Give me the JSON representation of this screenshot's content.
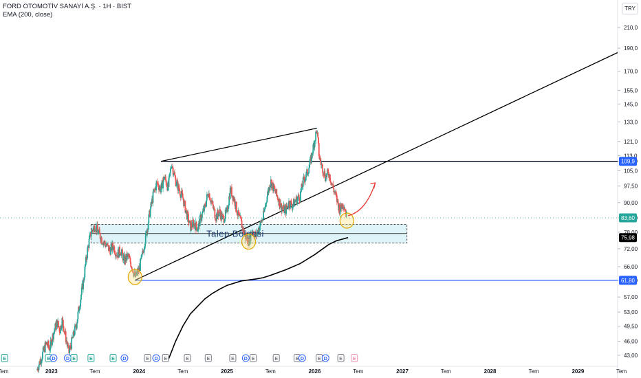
{
  "header": {
    "symbol_line": "FORD OTOMOTİV SANAYİ A.Ş. · 1H · BIST",
    "indicator_line": "EMA (200, close)",
    "currency": "TRY"
  },
  "chart_data": {
    "type": "candlestick",
    "title": "FORD OTOMOTİV SANAYİ A.Ş. · 1H · BIST",
    "indicator": "EMA (200, close)",
    "y_scale": "log",
    "ylim": [
      42,
      220
    ],
    "xlim": [
      "2022-06-01",
      "2029-06-15"
    ],
    "y_ticks": [
      43.0,
      46.0,
      49.5,
      53.0,
      57.0,
      61.8,
      66.0,
      72.0,
      78.0,
      83.6,
      90.0,
      97.5,
      105.0,
      109.9,
      113.0,
      121.0,
      133.0,
      145.0,
      155.0,
      170.0,
      190.0,
      210.0
    ],
    "y_tick_labels": [
      "43,00",
      "46,00",
      "49,50",
      "53,00",
      "57,00",
      "61,80",
      "66,00",
      "72,00",
      "78,00",
      "83,60",
      "90,00",
      "97,50",
      "105,0",
      "109,9",
      "113,0",
      "121,0",
      "133,0",
      "145,0",
      "155,0",
      "170,0",
      "190,0",
      "210,0"
    ],
    "x_ticks": [
      {
        "date": "2022-06-15",
        "label": "Tem"
      },
      {
        "date": "2023-01-01",
        "label": "2023"
      },
      {
        "date": "2023-07-01",
        "label": "Tem"
      },
      {
        "date": "2024-01-01",
        "label": "2024"
      },
      {
        "date": "2024-07-01",
        "label": "Tem"
      },
      {
        "date": "2025-01-01",
        "label": "2025"
      },
      {
        "date": "2025-07-01",
        "label": "Tem"
      },
      {
        "date": "2026-01-01",
        "label": "2026"
      },
      {
        "date": "2026-07-01",
        "label": "Tem"
      },
      {
        "date": "2027-01-01",
        "label": "2027"
      },
      {
        "date": "2027-07-01",
        "label": "Tem"
      },
      {
        "date": "2028-01-01",
        "label": "2028"
      },
      {
        "date": "2028-07-01",
        "label": "Tem"
      },
      {
        "date": "2029-01-01",
        "label": "2029"
      },
      {
        "date": "2029-07-01",
        "label": "Tem"
      }
    ],
    "price_path": [
      [
        "2022-11-01",
        40.0
      ],
      [
        "2022-11-20",
        42.5
      ],
      [
        "2022-12-10",
        45.5
      ],
      [
        "2022-12-25",
        44.5
      ],
      [
        "2023-01-10",
        48.0
      ],
      [
        "2023-01-25",
        50.5
      ],
      [
        "2023-02-05",
        48.5
      ],
      [
        "2023-02-15",
        51.0
      ],
      [
        "2023-03-01",
        47.0
      ],
      [
        "2023-03-15",
        43.5
      ],
      [
        "2023-04-01",
        47.0
      ],
      [
        "2023-04-15",
        50.0
      ],
      [
        "2023-05-01",
        56.0
      ],
      [
        "2023-05-15",
        62.0
      ],
      [
        "2023-06-01",
        72.0
      ],
      [
        "2023-06-15",
        78.0
      ],
      [
        "2023-07-01",
        80.5
      ],
      [
        "2023-07-15",
        78.0
      ],
      [
        "2023-08-01",
        75.0
      ],
      [
        "2023-08-15",
        73.5
      ],
      [
        "2023-09-01",
        71.5
      ],
      [
        "2023-09-15",
        73.0
      ],
      [
        "2023-10-01",
        70.0
      ],
      [
        "2023-10-15",
        71.5
      ],
      [
        "2023-11-01",
        68.0
      ],
      [
        "2023-11-15",
        69.5
      ],
      [
        "2023-12-01",
        66.5
      ],
      [
        "2023-12-15",
        62.8
      ],
      [
        "2024-01-01",
        65.0
      ],
      [
        "2024-01-15",
        70.0
      ],
      [
        "2024-02-01",
        78.0
      ],
      [
        "2024-02-15",
        86.0
      ],
      [
        "2024-03-01",
        94.0
      ],
      [
        "2024-03-15",
        99.0
      ],
      [
        "2024-04-01",
        96.0
      ],
      [
        "2024-04-15",
        102.0
      ],
      [
        "2024-05-01",
        96.5
      ],
      [
        "2024-05-15",
        109.0
      ],
      [
        "2024-06-01",
        100.0
      ],
      [
        "2024-06-15",
        96.0
      ],
      [
        "2024-07-01",
        92.0
      ],
      [
        "2024-07-15",
        86.0
      ],
      [
        "2024-08-01",
        80.0
      ],
      [
        "2024-08-15",
        81.5
      ],
      [
        "2024-09-01",
        79.5
      ],
      [
        "2024-09-15",
        84.0
      ],
      [
        "2024-10-01",
        88.0
      ],
      [
        "2024-10-15",
        95.0
      ],
      [
        "2024-11-01",
        89.0
      ],
      [
        "2024-11-15",
        84.0
      ],
      [
        "2024-12-01",
        86.0
      ],
      [
        "2024-12-15",
        83.0
      ],
      [
        "2025-01-01",
        86.0
      ],
      [
        "2025-01-15",
        96.0
      ],
      [
        "2025-02-01",
        91.0
      ],
      [
        "2025-02-15",
        85.0
      ],
      [
        "2025-03-01",
        81.5
      ],
      [
        "2025-03-15",
        77.0
      ],
      [
        "2025-04-01",
        74.5
      ],
      [
        "2025-04-15",
        79.0
      ],
      [
        "2025-05-01",
        76.5
      ],
      [
        "2025-05-15",
        80.0
      ],
      [
        "2025-06-01",
        84.0
      ],
      [
        "2025-06-15",
        92.0
      ],
      [
        "2025-07-01",
        100.0
      ],
      [
        "2025-07-15",
        96.0
      ],
      [
        "2025-08-01",
        92.0
      ],
      [
        "2025-08-15",
        88.0
      ],
      [
        "2025-09-01",
        86.5
      ],
      [
        "2025-09-15",
        90.0
      ],
      [
        "2025-10-01",
        89.0
      ],
      [
        "2025-10-15",
        91.0
      ],
      [
        "2025-11-01",
        93.0
      ],
      [
        "2025-11-15",
        100.0
      ],
      [
        "2025-12-01",
        104.0
      ],
      [
        "2025-12-15",
        110.0
      ],
      [
        "2026-01-01",
        122.0
      ],
      [
        "2026-01-10",
        128.0
      ],
      [
        "2026-01-20",
        112.0
      ],
      [
        "2026-02-01",
        107.0
      ],
      [
        "2026-02-15",
        102.0
      ],
      [
        "2026-03-01",
        104.0
      ],
      [
        "2026-03-15",
        98.0
      ],
      [
        "2026-04-01",
        92.0
      ],
      [
        "2026-04-15",
        87.0
      ],
      [
        "2026-05-01",
        90.0
      ],
      [
        "2026-05-15",
        83.6
      ]
    ],
    "ema200": [
      [
        "2024-05-01",
        42.0
      ],
      [
        "2024-06-01",
        46.0
      ],
      [
        "2024-07-01",
        49.5
      ],
      [
        "2024-08-01",
        52.5
      ],
      [
        "2024-09-01",
        54.5
      ],
      [
        "2024-10-01",
        56.5
      ],
      [
        "2024-11-01",
        58.0
      ],
      [
        "2024-12-01",
        59.2
      ],
      [
        "2025-01-01",
        60.3
      ],
      [
        "2025-03-01",
        61.6
      ],
      [
        "2025-05-01",
        62.2
      ],
      [
        "2025-06-01",
        62.6
      ],
      [
        "2025-07-01",
        63.3
      ],
      [
        "2025-09-01",
        65.0
      ],
      [
        "2025-11-01",
        67.0
      ],
      [
        "2026-01-01",
        70.0
      ],
      [
        "2026-02-01",
        71.8
      ],
      [
        "2026-03-01",
        73.5
      ],
      [
        "2026-04-01",
        74.8
      ],
      [
        "2026-05-20",
        75.98
      ]
    ],
    "horizontal_levels": [
      {
        "value": 109.9,
        "label": "109,9",
        "color": "#2962ff",
        "start": "2024-04-01"
      },
      {
        "value": 61.8,
        "label": "61,80",
        "color": "#2962ff",
        "start": "2023-12-15"
      }
    ],
    "last_price": {
      "value": 83.6,
      "label": "83,60",
      "color": "#26a69a"
    },
    "ema_last": {
      "value": 75.98,
      "label": "75,98",
      "color": "#000000"
    },
    "trend_lines": [
      {
        "from": [
          "2023-12-15",
          61.8
        ],
        "to": [
          "2029-06-15",
          186.0
        ],
        "color": "#000000"
      },
      {
        "from": [
          "2024-04-01",
          109.9
        ],
        "to": [
          "2026-01-10",
          129.0
        ],
        "color": "#000000"
      },
      {
        "from": [
          "2024-04-01",
          109.9
        ],
        "to": [
          "2029-06-15",
          109.9
        ],
        "color": "#000000"
      }
    ],
    "zone": {
      "label": "Talep Bölgesi",
      "from": "2023-06-15",
      "to": "2027-01-20",
      "top": 81.0,
      "bottom": 74.0,
      "mid": 77.5,
      "fill": "#dff4f9",
      "border": "#555555",
      "text_color": "#1a3b6e"
    },
    "markers": [
      {
        "date": "2023-12-15",
        "value": 62.8
      },
      {
        "date": "2025-04-01",
        "value": 74.5
      },
      {
        "date": "2026-05-15",
        "value": 82.5
      }
    ],
    "projection_arrow": {
      "from": [
        "2026-05-20",
        84.5
      ],
      "to": [
        "2026-09-10",
        99.0
      ],
      "color": "#e53935"
    },
    "events": [
      {
        "date": "2022-06-20",
        "kind": "E"
      },
      {
        "date": "2022-12-20",
        "kind": "E"
      },
      {
        "date": "2023-01-10",
        "kind": "D"
      },
      {
        "date": "2023-03-10",
        "kind": "D"
      },
      {
        "date": "2023-04-05",
        "kind": "E"
      },
      {
        "date": "2023-06-15",
        "kind": "E"
      },
      {
        "date": "2023-09-15",
        "kind": "E"
      },
      {
        "date": "2023-11-01",
        "kind": "D"
      },
      {
        "date": "2024-02-05",
        "kind": "E"
      },
      {
        "date": "2024-03-12",
        "kind": "D"
      },
      {
        "date": "2024-04-20",
        "kind": "E"
      },
      {
        "date": "2024-07-20",
        "kind": "E"
      },
      {
        "date": "2024-10-15",
        "kind": "E"
      },
      {
        "date": "2025-01-25",
        "kind": "E"
      },
      {
        "date": "2025-03-20",
        "kind": "D"
      },
      {
        "date": "2025-04-20",
        "kind": "E"
      },
      {
        "date": "2025-07-25",
        "kind": "E"
      },
      {
        "date": "2025-10-20",
        "kind": "E"
      },
      {
        "date": "2025-11-10",
        "kind": "D"
      },
      {
        "date": "2026-01-20",
        "kind": "E"
      },
      {
        "date": "2026-02-15",
        "kind": "D"
      },
      {
        "date": "2026-04-20",
        "kind": "E"
      },
      {
        "date": "2026-06-15",
        "kind": "E"
      }
    ]
  }
}
